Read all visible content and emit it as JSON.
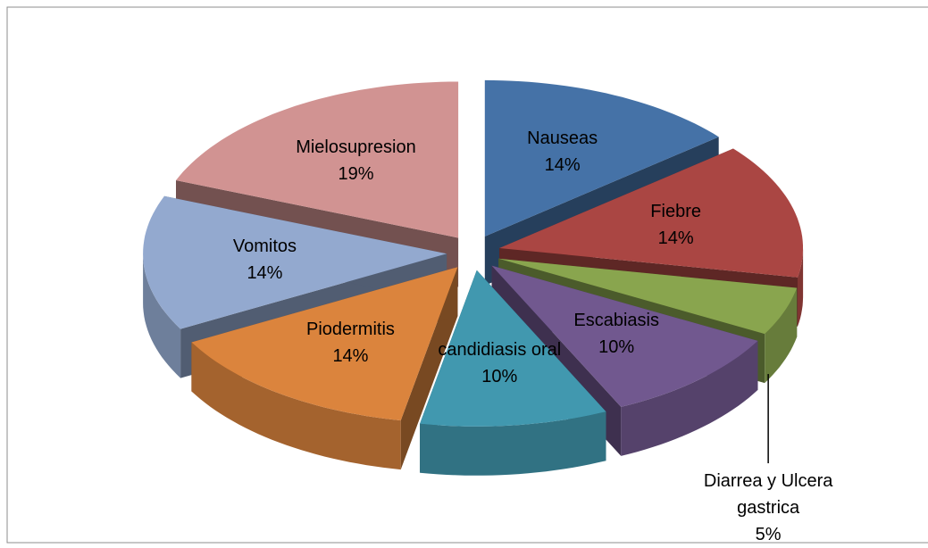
{
  "chart_data": {
    "type": "pie3d",
    "categories": [
      "Nauseas",
      "Fiebre",
      "Diarrea y Ulcera gastrica",
      "Escabiasis",
      "candidiasis oral",
      "Piodermitis",
      "Vomitos",
      "Mielosupresion"
    ],
    "values": [
      14,
      14,
      5,
      10,
      10,
      14,
      14,
      19
    ],
    "value_labels": [
      "14%",
      "14%",
      "5%",
      "10%",
      "10%",
      "14%",
      "14%",
      "19%"
    ],
    "colors": [
      "#4572a7",
      "#aa4643",
      "#89a54e",
      "#71588f",
      "#4198af",
      "#db843d",
      "#93a9cf",
      "#d19392"
    ]
  }
}
